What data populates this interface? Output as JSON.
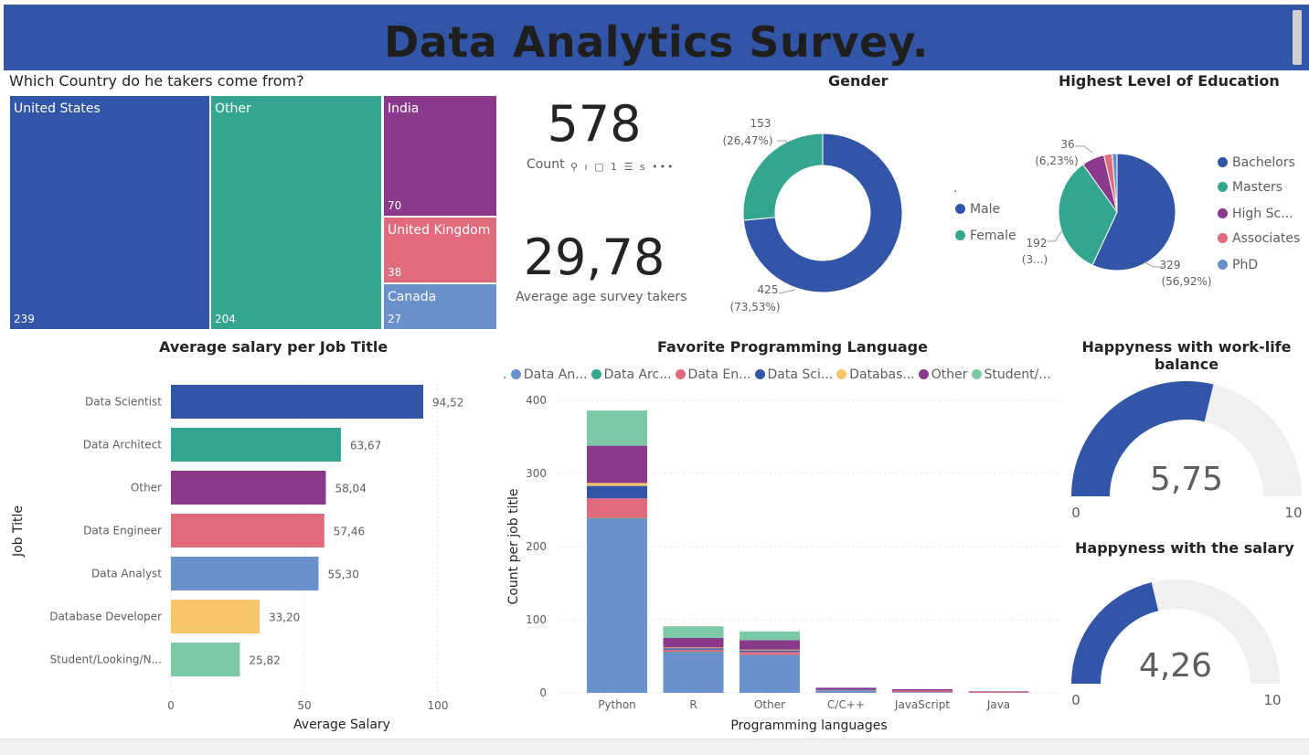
{
  "banner": {
    "title": "Data Analytics Survey."
  },
  "treemap": {
    "title": "Which Country do he takers come from?",
    "items": [
      {
        "name": "United States",
        "value": 239,
        "color": "#3355a8"
      },
      {
        "name": "Other",
        "value": 204,
        "color": "#34a58e"
      },
      {
        "name": "India",
        "value": 70,
        "color": "#8b3a8b"
      },
      {
        "name": "United Kingdom",
        "value": 38,
        "color": "#df6b7d"
      },
      {
        "name": "Canada",
        "value": 27,
        "color": "#6a91cc"
      }
    ]
  },
  "count_card": {
    "value": "578",
    "label": "Count",
    "tools_text": "⚲ ı ▢ 1 ☰ s •••"
  },
  "age_card": {
    "value": "29,78",
    "label": "Average age survey takers"
  },
  "gender": {
    "title": "Gender",
    "legend_title": ".",
    "slices": [
      {
        "name": "Male",
        "value": 425,
        "label_count": "425",
        "label_pct": "(73,53%)",
        "color": "#3355a8"
      },
      {
        "name": "Female",
        "value": 153,
        "label_count": "153",
        "label_pct": "(26,47%)",
        "color": "#34a58e"
      }
    ]
  },
  "education": {
    "title": "Highest Level of Education",
    "slices": [
      {
        "name": "Bachelors",
        "value": 329,
        "color": "#3355a8"
      },
      {
        "name": "Masters",
        "value": 192,
        "color": "#34a58e"
      },
      {
        "name": "High Sc...",
        "value": 36,
        "color": "#8b3a8b"
      },
      {
        "name": "Associates",
        "value": 13,
        "color": "#df6b7d"
      },
      {
        "name": "PhD",
        "value": 8,
        "color": "#6a91cc"
      }
    ],
    "labels": [
      {
        "count": "329",
        "pct": "(56,92%)"
      },
      {
        "count": "192",
        "pct": "(3...)"
      },
      {
        "count": "36",
        "pct": "(6,23%)"
      }
    ]
  },
  "salary": {
    "title": "Average salary per Job Title",
    "xlabel": "Average Salary",
    "ylabel": "Job Title",
    "xticks": [
      "0",
      "50",
      "100"
    ],
    "chart_data": {
      "type": "bar",
      "categories": [
        "Data Scientist",
        "Data Architect",
        "Other",
        "Data Engineer",
        "Data Analyst",
        "Database Developer",
        "Student/Looking/N..."
      ],
      "values": [
        94.52,
        63.67,
        58.04,
        57.46,
        55.3,
        33.2,
        25.82
      ],
      "value_labels": [
        "94,52",
        "63,67",
        "58,04",
        "57,46",
        "55,30",
        "33,20",
        "25,82"
      ],
      "colors": [
        "#3355a8",
        "#34a58e",
        "#8b3a8b",
        "#df6b7d",
        "#6a91cc",
        "#f5c76a",
        "#7cc9a8"
      ],
      "xlim": [
        0,
        100
      ]
    }
  },
  "languages": {
    "title": "Favorite Programming Language",
    "xlabel": "Programming languages",
    "ylabel": "Count per job title",
    "legend_title": ".",
    "yticks": [
      "0",
      "100",
      "200",
      "300",
      "400"
    ],
    "chart_data": {
      "type": "bar",
      "stacked": true,
      "categories": [
        "Python",
        "R",
        "Other",
        "C/C++",
        "JavaScript",
        "Java"
      ],
      "ylim": [
        0,
        400
      ],
      "series": [
        {
          "name": "Data An...",
          "color": "#6a91cc",
          "values": [
            238,
            55,
            52,
            3,
            1,
            0
          ]
        },
        {
          "name": "Data Arc...",
          "color": "#34a58e",
          "values": [
            1,
            1,
            0,
            0,
            0,
            0
          ]
        },
        {
          "name": "Data En...",
          "color": "#df6b7d",
          "values": [
            27,
            3,
            4,
            1,
            2,
            1
          ]
        },
        {
          "name": "Data Sci...",
          "color": "#3355a8",
          "values": [
            17,
            2,
            2,
            1,
            0,
            0
          ]
        },
        {
          "name": "Databas...",
          "color": "#f5c76a",
          "values": [
            4,
            1,
            1,
            0,
            0,
            0
          ]
        },
        {
          "name": "Other",
          "color": "#8b3a8b",
          "values": [
            51,
            13,
            13,
            2,
            2,
            1
          ]
        },
        {
          "name": "Student/...",
          "color": "#7cc9a8",
          "values": [
            48,
            16,
            12,
            0,
            0,
            0
          ]
        }
      ]
    }
  },
  "gauge_worklife": {
    "title_line1": "Happyness with work-life",
    "title_line2": "balance",
    "value": 5.75,
    "value_label": "5,75",
    "min": 0,
    "max": 10,
    "min_label": "0",
    "max_label": "10",
    "fill_color": "#3355a8",
    "track_color": "#f0f0f0"
  },
  "gauge_salary": {
    "title": "Happyness with the salary",
    "value": 4.26,
    "value_label": "4,26",
    "min": 0,
    "max": 10,
    "min_label": "0",
    "max_label": "10",
    "fill_color": "#3355a8",
    "track_color": "#f0f0f0"
  }
}
